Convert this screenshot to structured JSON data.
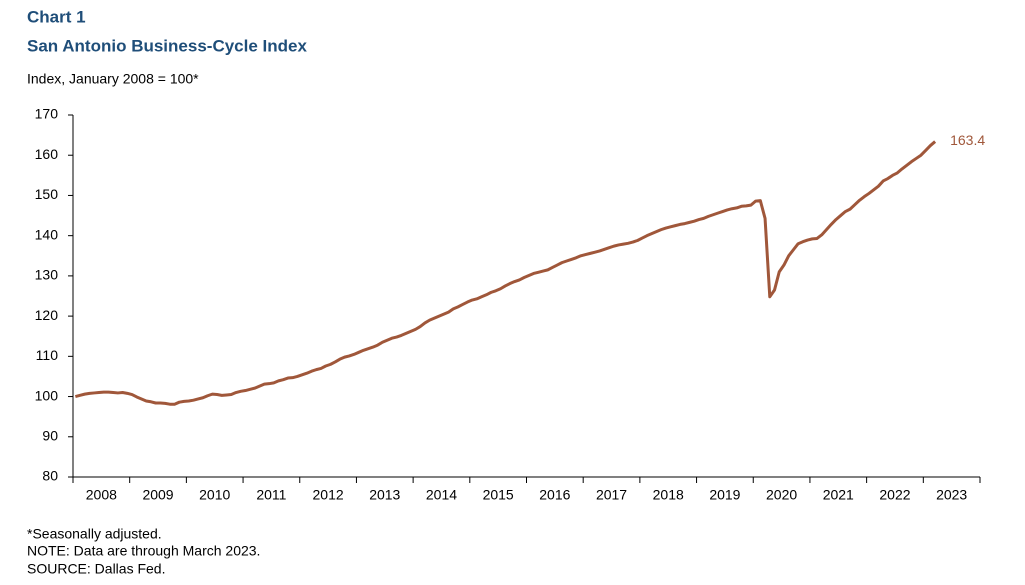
{
  "chart_data": {
    "type": "line",
    "kicker": "Chart 1",
    "title": "San Antonio Business-Cycle Index",
    "ylabel": "Index, January 2008 = 100*",
    "notes": [
      "*Seasonally adjusted.",
      "NOTE: Data are through March 2023.",
      "SOURCE: Dallas Fed."
    ],
    "categories": [
      "2008",
      null,
      null,
      null,
      null,
      null,
      null,
      null,
      null,
      null,
      null,
      null,
      "2009",
      null,
      null,
      null,
      null,
      null,
      null,
      null,
      null,
      null,
      null,
      null,
      "2010",
      null,
      null,
      null,
      null,
      null,
      null,
      null,
      null,
      null,
      null,
      null,
      "2011",
      null,
      null,
      null,
      null,
      null,
      null,
      null,
      null,
      null,
      null,
      null,
      "2012",
      null,
      null,
      null,
      null,
      null,
      null,
      null,
      null,
      null,
      null,
      null,
      "2013",
      null,
      null,
      null,
      null,
      null,
      null,
      null,
      null,
      null,
      null,
      null,
      "2014",
      null,
      null,
      null,
      null,
      null,
      null,
      null,
      null,
      null,
      null,
      null,
      "2015",
      null,
      null,
      null,
      null,
      null,
      null,
      null,
      null,
      null,
      null,
      null,
      "2016",
      null,
      null,
      null,
      null,
      null,
      null,
      null,
      null,
      null,
      null,
      null,
      "2017",
      null,
      null,
      null,
      null,
      null,
      null,
      null,
      null,
      null,
      null,
      null,
      "2018",
      null,
      null,
      null,
      null,
      null,
      null,
      null,
      null,
      null,
      null,
      null,
      "2019",
      null,
      null,
      null,
      null,
      null,
      null,
      null,
      null,
      null,
      null,
      null,
      "2020",
      null,
      null,
      null,
      null,
      null,
      null,
      null,
      null,
      null,
      null,
      null,
      "2021",
      null,
      null,
      null,
      null,
      null,
      null,
      null,
      null,
      null,
      null,
      null,
      "2022",
      null,
      null,
      null,
      null,
      null,
      null,
      null,
      null,
      null,
      null,
      null,
      "2023",
      null,
      null,
      null,
      null,
      null,
      null,
      null,
      null,
      null,
      null,
      null
    ],
    "series": [
      {
        "name": "San Antonio",
        "color": "#a0573a",
        "values": [
          100.0,
          100.3,
          100.6,
          100.8,
          100.9,
          101.0,
          101.1,
          101.1,
          101.0,
          100.9,
          101.0,
          100.8,
          100.5,
          99.9,
          99.4,
          98.9,
          98.7,
          98.4,
          98.4,
          98.3,
          98.1,
          98.1,
          98.6,
          98.8,
          98.9,
          99.1,
          99.4,
          99.7,
          100.2,
          100.6,
          100.5,
          100.3,
          100.4,
          100.5,
          101.0,
          101.3,
          101.5,
          101.8,
          102.1,
          102.6,
          103.1,
          103.2,
          103.4,
          103.9,
          104.2,
          104.6,
          104.7,
          105.0,
          105.4,
          105.8,
          106.3,
          106.7,
          107.0,
          107.6,
          108.0,
          108.6,
          109.3,
          109.8,
          110.1,
          110.5,
          111.0,
          111.5,
          111.9,
          112.3,
          112.8,
          113.5,
          114.0,
          114.5,
          114.8,
          115.2,
          115.7,
          116.2,
          116.7,
          117.4,
          118.3,
          119.0,
          119.5,
          120.0,
          120.5,
          121.0,
          121.8,
          122.3,
          122.9,
          123.5,
          124.0,
          124.3,
          124.8,
          125.3,
          125.9,
          126.3,
          126.8,
          127.5,
          128.1,
          128.6,
          129.0,
          129.6,
          130.1,
          130.6,
          130.9,
          131.2,
          131.5,
          132.1,
          132.7,
          133.3,
          133.7,
          134.1,
          134.5,
          135.0,
          135.3,
          135.6,
          135.9,
          136.2,
          136.6,
          137.0,
          137.4,
          137.7,
          137.9,
          138.1,
          138.4,
          138.8,
          139.4,
          140.0,
          140.5,
          141.0,
          141.5,
          141.9,
          142.2,
          142.5,
          142.8,
          143.0,
          143.3,
          143.6,
          144.0,
          144.3,
          144.8,
          145.2,
          145.6,
          146.0,
          146.4,
          146.7,
          146.9,
          147.3,
          147.4,
          147.6,
          148.6,
          148.7,
          144.3,
          124.8,
          126.5,
          131.0,
          132.7,
          135.0,
          136.5,
          138.0,
          138.5,
          138.9,
          139.2,
          139.3,
          140.2,
          141.5,
          142.8,
          144.0,
          145.0,
          146.0,
          146.6,
          147.7,
          148.8,
          149.7,
          150.5,
          151.4,
          152.3,
          153.6,
          154.2,
          155.0,
          155.6,
          156.6,
          157.5,
          158.4,
          159.2,
          160.0,
          161.2,
          162.4,
          163.4,
          null,
          null,
          null,
          null,
          null,
          null,
          null,
          null,
          null
        ]
      }
    ],
    "ylim": [
      80,
      170
    ],
    "yticks": [
      80,
      90,
      100,
      110,
      120,
      130,
      140,
      150,
      160,
      170
    ]
  }
}
